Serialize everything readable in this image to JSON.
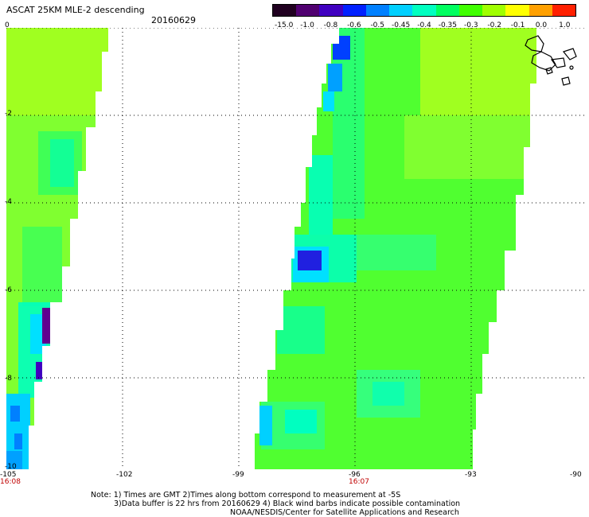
{
  "header": {
    "title": "ASCAT 25KM MLE-2 descending",
    "date": "20160629"
  },
  "colorbar": {
    "labels": [
      "-15.0",
      "-1.0",
      "-0.8",
      "-0.6",
      "-0.5",
      "-0.45",
      "-0.4",
      "-0.35",
      "-0.3",
      "-0.2",
      "-0.1",
      "0.0",
      "1.0"
    ],
    "colors": [
      "#200020",
      "#500070",
      "#4000c0",
      "#0020ff",
      "#0080ff",
      "#00d0ff",
      "#00ffc0",
      "#00ff60",
      "#40ff00",
      "#a0ff00",
      "#ffff00",
      "#ffa000",
      "#ff2000"
    ]
  },
  "map": {
    "lon_labels": [
      "-105",
      "-102",
      "-99",
      "-96",
      "-93",
      "-90"
    ],
    "lat_labels": [
      "0",
      "-2",
      "-4",
      "-6",
      "-8",
      "-10"
    ],
    "lon_range": [
      -105,
      -90
    ],
    "lat_range": [
      0,
      -10
    ],
    "grid": "dotted",
    "time_labels": [
      {
        "lon": -105,
        "text": "16:08"
      },
      {
        "lon": -96,
        "text": "16:07"
      }
    ]
  },
  "notes": {
    "line1": "Note: 1) Times are GMT 2)Times along bottom correspond to measurement at -5S",
    "line2": "3)Data buffer is 22 hrs from 20160629 4) Black wind barbs indicate possible contamination",
    "line3": "NOAA/NESDIS/Center for Satellite Applications and Research"
  }
}
